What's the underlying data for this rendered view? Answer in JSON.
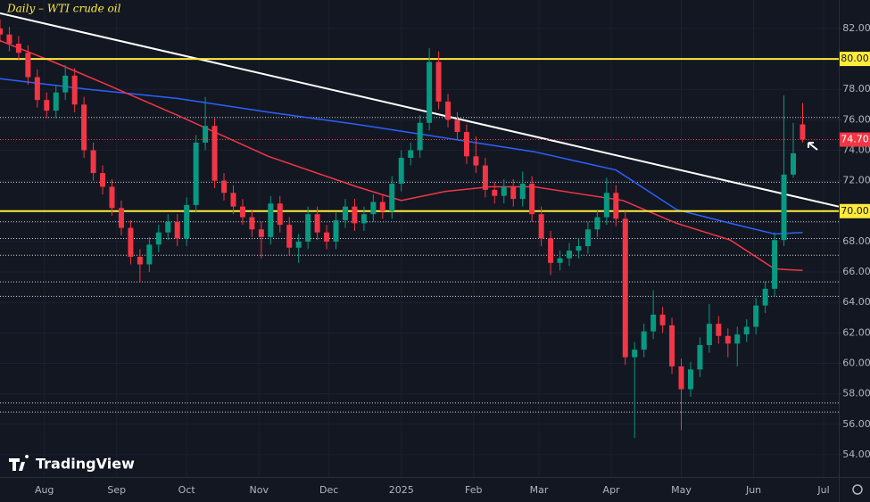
{
  "chart_data": {
    "type": "candlestick",
    "title": "Daily – WTI crude oil",
    "brand": "TradingView",
    "x": [
      12,
      16,
      20,
      24,
      28,
      32,
      36,
      40,
      44,
      48,
      52,
      56,
      60,
      64,
      68,
      72,
      76,
      80,
      84,
      88,
      92,
      96,
      100,
      104,
      108,
      112,
      116,
      120,
      124,
      128,
      132,
      136,
      140,
      144,
      148,
      152,
      156,
      160,
      164,
      168,
      172,
      176,
      180,
      184,
      188,
      192,
      196,
      200,
      204,
      208,
      212,
      216,
      220,
      224,
      228,
      232,
      236,
      240,
      244,
      248,
      252,
      256,
      260,
      264,
      268,
      272,
      276,
      280,
      284,
      288,
      292,
      296,
      300,
      304,
      308,
      312,
      316,
      320,
      324,
      328,
      332,
      336,
      340,
      344,
      348,
      352,
      356
    ],
    "open": [
      82.0,
      81.6,
      81.0,
      80.4,
      78.8,
      77.3,
      76.6,
      77.8,
      78.9,
      77.0,
      74.0,
      72.5,
      71.6,
      70.2,
      68.9,
      67.0,
      66.5,
      67.8,
      68.6,
      69.3,
      68.2,
      70.4,
      74.5,
      75.6,
      72.0,
      71.2,
      70.3,
      69.6,
      68.8,
      68.3,
      70.5,
      69.1,
      67.6,
      68.0,
      69.8,
      68.6,
      68.0,
      69.4,
      70.3,
      69.2,
      69.8,
      70.6,
      70.0,
      71.8,
      73.5,
      74.0,
      75.8,
      79.8,
      77.2,
      76.0,
      75.2,
      73.6,
      73.0,
      71.4,
      71.0,
      71.6,
      70.8,
      71.8,
      69.8,
      68.2,
      66.6,
      66.9,
      67.4,
      67.7,
      68.8,
      69.6,
      71.2,
      69.5,
      60.4,
      60.9,
      62.1,
      63.2,
      62.5,
      59.8,
      58.3,
      59.6,
      61.2,
      62.6,
      61.8,
      61.3,
      61.9,
      62.4,
      63.8,
      64.9,
      68.1,
      72.4,
      75.7
    ],
    "high": [
      82.6,
      82.1,
      81.5,
      80.9,
      79.3,
      77.8,
      78.3,
      79.6,
      79.4,
      77.5,
      74.5,
      73.0,
      72.1,
      70.7,
      69.4,
      67.5,
      68.3,
      69.1,
      69.8,
      69.8,
      70.9,
      75.0,
      77.5,
      76.1,
      72.5,
      71.7,
      70.8,
      70.1,
      69.3,
      71.0,
      71.0,
      69.6,
      68.5,
      70.3,
      70.3,
      69.1,
      69.9,
      70.8,
      70.8,
      70.3,
      71.1,
      71.1,
      72.3,
      74.0,
      74.5,
      76.3,
      80.7,
      80.5,
      77.7,
      76.5,
      75.7,
      74.9,
      73.5,
      71.9,
      72.1,
      72.1,
      72.6,
      72.3,
      70.3,
      68.7,
      67.4,
      67.9,
      68.2,
      69.3,
      70.1,
      72.2,
      71.7,
      70.0,
      61.4,
      62.6,
      64.8,
      63.7,
      63.0,
      60.3,
      60.1,
      61.7,
      63.9,
      63.1,
      62.3,
      62.4,
      62.9,
      64.3,
      65.4,
      68.6,
      77.6,
      75.8,
      77.1
    ],
    "low": [
      81.1,
      80.5,
      79.9,
      78.3,
      76.8,
      76.1,
      76.1,
      77.3,
      76.5,
      73.5,
      72.0,
      71.1,
      69.7,
      68.4,
      66.5,
      65.3,
      66.0,
      67.3,
      68.1,
      67.7,
      67.7,
      69.9,
      74.0,
      71.5,
      70.7,
      69.8,
      69.1,
      68.3,
      66.9,
      67.8,
      68.6,
      67.1,
      66.6,
      67.5,
      68.1,
      67.5,
      67.5,
      68.9,
      68.7,
      68.7,
      69.3,
      69.5,
      69.5,
      71.3,
      73.0,
      73.5,
      75.3,
      76.7,
      75.5,
      74.7,
      73.1,
      72.5,
      70.9,
      70.5,
      70.5,
      70.3,
      70.3,
      69.3,
      67.7,
      65.8,
      66.1,
      66.4,
      66.9,
      67.2,
      68.3,
      69.1,
      69.0,
      59.9,
      55.1,
      60.4,
      61.6,
      62.0,
      59.3,
      55.6,
      57.8,
      59.1,
      60.7,
      61.3,
      60.4,
      59.8,
      61.4,
      61.9,
      63.3,
      64.4,
      67.7,
      72.2,
      74.5
    ],
    "close": [
      81.6,
      81.0,
      80.4,
      78.8,
      77.3,
      76.6,
      77.8,
      78.9,
      77.0,
      74.0,
      72.5,
      71.6,
      70.2,
      68.9,
      67.0,
      66.5,
      67.8,
      68.6,
      69.3,
      68.2,
      70.4,
      74.5,
      75.6,
      72.0,
      71.2,
      70.3,
      69.6,
      68.8,
      68.3,
      70.5,
      69.1,
      67.6,
      68.0,
      69.8,
      68.6,
      68.0,
      69.4,
      70.3,
      69.2,
      69.8,
      70.6,
      70.0,
      71.8,
      73.5,
      74.0,
      75.8,
      79.8,
      77.2,
      76.0,
      75.2,
      73.6,
      73.0,
      71.4,
      71.0,
      71.6,
      70.8,
      71.8,
      69.8,
      68.2,
      66.6,
      66.9,
      67.4,
      67.7,
      68.8,
      69.6,
      71.2,
      69.5,
      60.4,
      60.9,
      62.1,
      63.2,
      62.5,
      59.8,
      58.3,
      59.6,
      61.2,
      62.6,
      61.8,
      61.3,
      61.9,
      62.4,
      63.8,
      64.9,
      68.1,
      72.4,
      73.8,
      74.7
    ],
    "up_color": "#089981",
    "down_color": "#f23645",
    "moving_averages": [
      {
        "color": "#2962ff",
        "x": [
          12,
          50,
          88,
          127,
          165,
          203,
          241,
          276,
          302,
          325,
          344,
          356
        ],
        "values": [
          78.7,
          78.0,
          77.4,
          76.5,
          75.7,
          74.8,
          73.9,
          72.7,
          70.1,
          69.2,
          68.5,
          68.6
        ]
      },
      {
        "color": "#f23645",
        "x": [
          12,
          35,
          58,
          88,
          127,
          165,
          184,
          203,
          222,
          241,
          279,
          302,
          325,
          344,
          356
        ],
        "values": [
          81.2,
          79.8,
          78.3,
          76.3,
          73.6,
          71.6,
          70.7,
          71.3,
          71.6,
          71.6,
          70.7,
          69.2,
          68.1,
          66.2,
          66.1
        ]
      }
    ],
    "trendline": {
      "color": "#ffffff",
      "x": [
        12,
        371.5
      ],
      "values": [
        83.0,
        70.3
      ]
    },
    "horizontal_lines": [
      {
        "value": 80,
        "label": "80.00"
      },
      {
        "value": 70,
        "label": "70.00"
      }
    ],
    "horizontal_line_color": "#ffeb3b",
    "levels": [
      76.15,
      71.9,
      69.3,
      68.2,
      67.1,
      65.35,
      64.4,
      57.4,
      56.8
    ],
    "last_price": {
      "value": 74.7,
      "label": "74.70"
    },
    "xlim": [
      12,
      371.5
    ],
    "ylim": [
      52.53,
      83.87
    ],
    "xticks": [
      {
        "value": 31,
        "label": "Aug"
      },
      {
        "value": 62,
        "label": "Sep"
      },
      {
        "value": 92,
        "label": "Oct"
      },
      {
        "value": 123,
        "label": "Nov"
      },
      {
        "value": 153,
        "label": "Dec"
      },
      {
        "value": 184,
        "label": "2025"
      },
      {
        "value": 215,
        "label": "Feb"
      },
      {
        "value": 243,
        "label": "Mar"
      },
      {
        "value": 274,
        "label": "Apr"
      },
      {
        "value": 304,
        "label": "May"
      },
      {
        "value": 335,
        "label": "Jun"
      },
      {
        "value": 365,
        "label": "Jul"
      }
    ],
    "yticks": [
      {
        "value": 54,
        "label": "54.00"
      },
      {
        "value": 56,
        "label": "56.00"
      },
      {
        "value": 58,
        "label": "58.00"
      },
      {
        "value": 60,
        "label": "60.00"
      },
      {
        "value": 62,
        "label": "62.00"
      },
      {
        "value": 64,
        "label": "64.00"
      },
      {
        "value": 66,
        "label": "66.00"
      },
      {
        "value": 68,
        "label": "68.00"
      },
      {
        "value": 70,
        "label": "70.00"
      },
      {
        "value": 72,
        "label": "72.00"
      },
      {
        "value": 74,
        "label": "74.00"
      },
      {
        "value": 76,
        "label": "76.00"
      },
      {
        "value": 78,
        "label": "78.00"
      },
      {
        "value": 80,
        "label": "80.00"
      },
      {
        "value": 82,
        "label": "82.00"
      }
    ]
  }
}
